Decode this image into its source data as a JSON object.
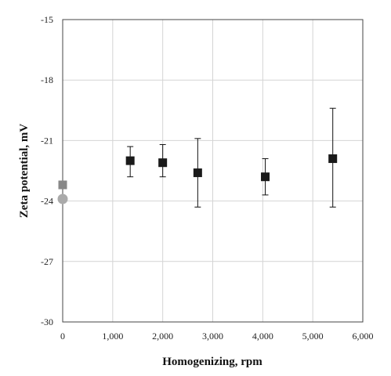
{
  "chart_data": {
    "type": "scatter",
    "xlabel": "Homogenizing,  rpm",
    "ylabel": "Zeta potential,  mV",
    "xlim": [
      0,
      6000
    ],
    "ylim": [
      -30,
      -15
    ],
    "x_ticks": [
      "0",
      "1,000",
      "2,000",
      "3,000",
      "4,000",
      "5,000",
      "6,000"
    ],
    "y_ticks": [
      "-15",
      "-18",
      "-21",
      "-24",
      "-27",
      "-30"
    ],
    "x_tick_values": [
      0,
      1000,
      2000,
      3000,
      4000,
      5000,
      6000
    ],
    "y_tick_values": [
      -15,
      -18,
      -21,
      -24,
      -27,
      -30
    ],
    "grid": true,
    "series": [
      {
        "marker": "square",
        "color": "#1a1a1a",
        "points": [
          {
            "x": 1350,
            "y": -22.0,
            "err_low": 0.8,
            "err_high": 0.7
          },
          {
            "x": 2000,
            "y": -22.1,
            "err_low": 0.7,
            "err_high": 0.9
          },
          {
            "x": 2700,
            "y": -22.6,
            "err_low": 1.7,
            "err_high": 1.7
          },
          {
            "x": 4050,
            "y": -22.8,
            "err_low": 0.9,
            "err_high": 0.9
          },
          {
            "x": 5400,
            "y": -21.9,
            "err_low": 2.4,
            "err_high": 2.5
          }
        ]
      },
      {
        "marker": "square",
        "color": "#888888",
        "points": [
          {
            "x": 0,
            "y": -23.2
          }
        ]
      },
      {
        "marker": "circle",
        "color": "#aaaaaa",
        "points": [
          {
            "x": 0,
            "y": -23.9
          }
        ]
      }
    ]
  }
}
